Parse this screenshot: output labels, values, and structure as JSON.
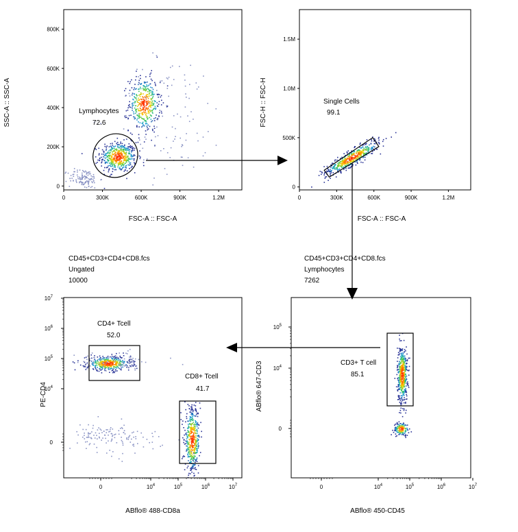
{
  "chart_data": [
    {
      "type": "scatter",
      "id": "p1",
      "xlabel": "FSC-A :: FSC-A",
      "ylabel": "SSC-A :: SSC-A",
      "xlim": [
        0,
        1380000
      ],
      "ylim": [
        -20000,
        900000
      ],
      "xticks": [
        {
          "v": 0,
          "label": "0"
        },
        {
          "v": 300000,
          "label": "300K"
        },
        {
          "v": 600000,
          "label": "600K"
        },
        {
          "v": 900000,
          "label": "900K"
        },
        {
          "v": 1200000,
          "label": "1.2M"
        }
      ],
      "yticks": [
        {
          "v": 0,
          "label": "0"
        },
        {
          "v": 200000,
          "label": "200K"
        },
        {
          "v": 400000,
          "label": "400K"
        },
        {
          "v": 600000,
          "label": "600K"
        },
        {
          "v": 800000,
          "label": "800K"
        }
      ],
      "gate": {
        "name": "Lymphocytes",
        "value": "72.6",
        "shape": "ellipse",
        "cx": 400000,
        "cy": 155000,
        "rx": 175000,
        "ry": 110000,
        "rotation": -30
      },
      "populations": [
        {
          "cx": 420000,
          "cy": 150000,
          "sx": 70000,
          "sy": 38000,
          "n": 500
        },
        {
          "cx": 620000,
          "cy": 420000,
          "sx": 60000,
          "sy": 70000,
          "n": 420
        },
        {
          "cx": 150000,
          "cy": 40000,
          "sx": 60000,
          "sy": 25000,
          "n": 120
        },
        {
          "cx": 820000,
          "cy": 350000,
          "sx": 220000,
          "sy": 160000,
          "n": 110
        }
      ]
    },
    {
      "type": "scatter",
      "id": "p2",
      "xlabel": "FSC-A :: FSC-A",
      "ylabel": "FSC-H :: FSC-H",
      "xlim": [
        0,
        1380000
      ],
      "ylim": [
        -30000,
        1800000
      ],
      "xticks": [
        {
          "v": 0,
          "label": "0"
        },
        {
          "v": 300000,
          "label": "300K"
        },
        {
          "v": 600000,
          "label": "600K"
        },
        {
          "v": 900000,
          "label": "900K"
        },
        {
          "v": 1200000,
          "label": "1.2M"
        }
      ],
      "yticks": [
        {
          "v": 0,
          "label": "0"
        },
        {
          "v": 500000,
          "label": "500K"
        },
        {
          "v": 1000000,
          "label": "1.0M"
        },
        {
          "v": 1500000,
          "label": "1.5M"
        }
      ],
      "gate": {
        "name": "Single Cells",
        "value": "99.1",
        "shape": "polygon",
        "points": [
          [
            200000,
            170000
          ],
          [
            240000,
            100000
          ],
          [
            640000,
            410000
          ],
          [
            590000,
            500000
          ]
        ]
      },
      "populations": [
        {
          "cx": 420000,
          "cy": 300000,
          "sx": 110000,
          "sy": 40000,
          "n": 480,
          "diag": 0.68
        }
      ]
    },
    {
      "type": "scatter",
      "id": "p3",
      "xlabel": "ABflo® 450-CD45",
      "ylabel": "ABflo® 647-CD3",
      "header": [
        "CD45+CD3+CD4+CD8.fcs",
        "Lymphocytes",
        "7262"
      ],
      "xticks": [
        {
          "v": 0,
          "label": "0"
        },
        {
          "v": 4,
          "label": "10",
          "sup": "4"
        },
        {
          "v": 5,
          "label": "10",
          "sup": "5"
        },
        {
          "v": 6,
          "label": "10",
          "sup": "6"
        },
        {
          "v": 7,
          "label": "10",
          "sup": "7"
        }
      ],
      "yticks": [
        {
          "v": 0,
          "label": "0"
        },
        {
          "v": 4,
          "label": "10",
          "sup": "4"
        },
        {
          "v": 5,
          "label": "10",
          "sup": "5"
        }
      ],
      "gate": {
        "name": "CD3+ T cell",
        "value": "85.1",
        "shape": "rect"
      },
      "populations": [
        {
          "cx": 4.75,
          "cy": 3.85,
          "sx": 0.08,
          "sy": 0.35,
          "n": 500
        },
        {
          "cx": 4.72,
          "cy": 0.0,
          "sx": 0.12,
          "sy": 0.12,
          "n": 150
        }
      ]
    },
    {
      "type": "scatter",
      "id": "p4",
      "xlabel": "ABflo® 488-CD8a",
      "ylabel": "PE-CD4",
      "header": [
        "CD45+CD3+CD4+CD8.fcs",
        "Ungated",
        "10000"
      ],
      "xticks": [
        {
          "v": 0,
          "label": "0"
        },
        {
          "v": 4,
          "label": "10",
          "sup": "4"
        },
        {
          "v": 5,
          "label": "10",
          "sup": "5"
        },
        {
          "v": 6,
          "label": "10",
          "sup": "6"
        },
        {
          "v": 7,
          "label": "10",
          "sup": "7"
        }
      ],
      "yticks": [
        {
          "v": 0,
          "label": "0"
        },
        {
          "v": 4,
          "label": "10",
          "sup": "4"
        },
        {
          "v": 5,
          "label": "10",
          "sup": "5"
        },
        {
          "v": 6,
          "label": "10",
          "sup": "6"
        },
        {
          "v": 7,
          "label": "10",
          "sup": "7"
        }
      ],
      "gates": [
        {
          "name": "CD4+ Tcell",
          "value": "52.0",
          "shape": "rect"
        },
        {
          "name": "CD8+ Tcell",
          "value": "41.7",
          "shape": "rect"
        }
      ],
      "populations": [
        {
          "cx": 0.3,
          "cy": 4.85,
          "sx": 0.45,
          "sy": 0.12,
          "n": 420
        },
        {
          "cx": 5.5,
          "cy": 0.1,
          "sx": 0.14,
          "sy": 0.6,
          "n": 460
        },
        {
          "cx": 1.5,
          "cy": 4.9,
          "sx": 1.4,
          "sy": 0.15,
          "n": 80
        },
        {
          "cx": 1.3,
          "cy": 0.2,
          "sx": 1.6,
          "sy": 0.25,
          "n": 140
        }
      ]
    }
  ],
  "colors": {
    "axis": "#000000",
    "dots_low": "#2b3a9e",
    "dots_mid": "#18b0d8",
    "dots_high": "#ff2a00",
    "sparse": "#7a86b8"
  }
}
